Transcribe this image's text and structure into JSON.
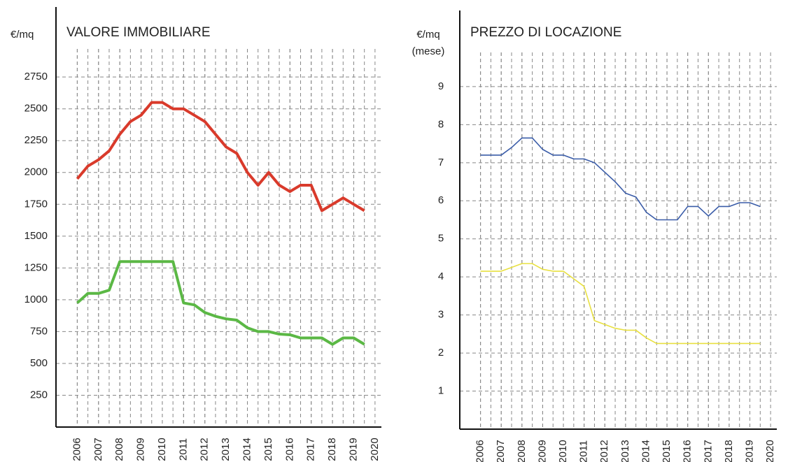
{
  "chart_data": [
    {
      "type": "line",
      "title": "VALORE IMMOBILIARE",
      "ylabel": [
        "€/mq"
      ],
      "x": [
        2006,
        2006.5,
        2007,
        2007.5,
        2008,
        2008.5,
        2009,
        2009.5,
        2010,
        2010.5,
        2011,
        2011.5,
        2012,
        2012.5,
        2013,
        2013.5,
        2014,
        2014.5,
        2015,
        2015.5,
        2016,
        2016.5,
        2017,
        2017.5,
        2018,
        2018.5,
        2019,
        2019.5
      ],
      "series": [
        {
          "color": "#d93a2b",
          "values": [
            1950,
            2050,
            2100,
            2170,
            2300,
            2400,
            2450,
            2550,
            2550,
            2500,
            2500,
            2450,
            2400,
            2300,
            2200,
            2150,
            2000,
            1900,
            2000,
            1900,
            1850,
            1900,
            1900,
            1700,
            1750,
            1800,
            1750,
            1700
          ]
        },
        {
          "color": "#5bb845",
          "values": [
            975,
            1050,
            1050,
            1075,
            1300,
            1300,
            1300,
            1300,
            1300,
            1300,
            975,
            960,
            900,
            870,
            850,
            840,
            780,
            750,
            750,
            730,
            725,
            700,
            700,
            700,
            650,
            700,
            700,
            650
          ]
        }
      ],
      "xlim": [
        2005,
        2020.3
      ],
      "xticks": [
        2006,
        2007,
        2008,
        2009,
        2010,
        2011,
        2012,
        2013,
        2014,
        2015,
        2016,
        2017,
        2018,
        2019,
        2020
      ],
      "ylim": [
        0,
        3300
      ],
      "yticks": [
        250,
        500,
        750,
        1000,
        1250,
        1500,
        1750,
        2000,
        2250,
        2500,
        2750
      ],
      "grid": true
    },
    {
      "type": "line",
      "title": "PREZZO DI LOCAZIONE",
      "ylabel": [
        "€/mq",
        "(mese)"
      ],
      "x": [
        2006,
        2006.5,
        2007,
        2007.5,
        2008,
        2008.5,
        2009,
        2009.5,
        2010,
        2010.5,
        2011,
        2011.5,
        2012,
        2012.5,
        2013,
        2013.5,
        2014,
        2014.5,
        2015,
        2015.5,
        2016,
        2016.5,
        2017,
        2017.5,
        2018,
        2018.5,
        2019,
        2019.5
      ],
      "series": [
        {
          "color": "#3a5ca8",
          "values": [
            7.2,
            7.2,
            7.2,
            7.4,
            7.65,
            7.65,
            7.35,
            7.2,
            7.2,
            7.1,
            7.1,
            7.0,
            6.75,
            6.5,
            6.2,
            6.1,
            5.7,
            5.5,
            5.5,
            5.5,
            5.85,
            5.85,
            5.6,
            5.85,
            5.85,
            5.95,
            5.95,
            5.85
          ]
        },
        {
          "color": "#e8e040",
          "values": [
            4.15,
            4.15,
            4.15,
            4.25,
            4.35,
            4.35,
            4.2,
            4.15,
            4.15,
            3.95,
            3.75,
            2.85,
            2.75,
            2.65,
            2.6,
            2.6,
            2.4,
            2.25,
            2.25,
            2.25,
            2.25,
            2.25,
            2.25,
            2.25,
            2.25,
            2.25,
            2.25,
            2.25
          ]
        }
      ],
      "xlim": [
        2005,
        2020.3
      ],
      "xticks": [
        2006,
        2007,
        2008,
        2009,
        2010,
        2011,
        2012,
        2013,
        2014,
        2015,
        2016,
        2017,
        2018,
        2019,
        2020
      ],
      "ylim": [
        0,
        11
      ],
      "yticks": [
        1,
        2,
        3,
        4,
        5,
        6,
        7,
        8,
        9
      ],
      "grid": true
    }
  ]
}
